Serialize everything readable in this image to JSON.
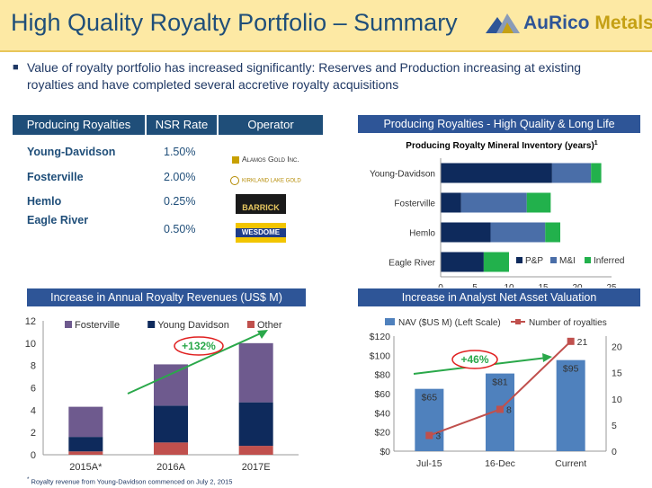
{
  "header": {
    "title": "High Quality Royalty Portfolio – Summary",
    "logo_name": "AuRico",
    "logo_suffix": "Metals"
  },
  "bullet": "Value of royalty portfolio has increased significantly: Reserves and Production increasing at existing royalties and have completed several accretive royalty acquisitions",
  "table": {
    "headers": [
      "Producing Royalties",
      "NSR Rate",
      "Operator"
    ],
    "rows": [
      {
        "name": "Young-Davidson",
        "rate": "1.50%",
        "operator": "Alamos Gold Inc."
      },
      {
        "name": "Fosterville",
        "rate": "2.00%",
        "operator": "Kirkland Lake Gold"
      },
      {
        "name": "Hemlo",
        "rate": "0.25%",
        "operator": "BARRICK"
      },
      {
        "name": "Eagle River",
        "rate": "0.50%",
        "operator": "WESDOME"
      }
    ]
  },
  "colors": {
    "navy": "#0e2a5c",
    "steel": "#4a6ea8",
    "green": "#22b14c",
    "purple": "#6e5a8e",
    "red": "#c0504d",
    "navblue": "#4f81bd",
    "arrowgreen": "#2aa84a"
  },
  "chart_data": [
    {
      "type": "bar",
      "orientation": "horizontal",
      "stacked": true,
      "panel_title": "Producing Royalties - High Quality & Long Life",
      "title": "Producing Royalty Mineral Inventory (years)",
      "title_superscript": "1",
      "categories": [
        "Young-Davidson",
        "Fosterville",
        "Hemlo",
        "Eagle River"
      ],
      "series": [
        {
          "name": "P&P",
          "values": [
            16.3,
            3.0,
            7.3,
            6.3
          ]
        },
        {
          "name": "M&I",
          "values": [
            5.7,
            9.6,
            8.0,
            0
          ]
        },
        {
          "name": "Inferred",
          "values": [
            1.5,
            3.5,
            2.2,
            3.7
          ]
        }
      ],
      "xlim": [
        0,
        25
      ],
      "xticks": [
        "0",
        "5",
        "10",
        "15",
        "20",
        "25"
      ],
      "legend": "bottom-right"
    },
    {
      "type": "bar",
      "stacked": true,
      "panel_title": "Increase in Annual Royalty Revenues (US$ M)",
      "categories": [
        "2015A*",
        "2016A",
        "2017E"
      ],
      "series": [
        {
          "name": "Other",
          "values": [
            0.3,
            1.1,
            0.8
          ]
        },
        {
          "name": "Young Davidson",
          "values": [
            1.3,
            3.3,
            3.9
          ]
        },
        {
          "name": "Fosterville",
          "values": [
            2.7,
            3.7,
            5.3
          ]
        }
      ],
      "legend_order": [
        "Fosterville",
        "Young Davidson",
        "Other"
      ],
      "ylim": [
        0,
        12
      ],
      "yticks": [
        "0",
        "2",
        "4",
        "6",
        "8",
        "10",
        "12"
      ],
      "annotation": "+132%",
      "legend": "top"
    },
    {
      "type": "bar+line",
      "panel_title": "Increase in Analyst Net Asset Valuation",
      "categories": [
        "Jul-15",
        "16-Dec",
        "Current"
      ],
      "bar_series": {
        "name": "NAV ($US M) (Left Scale)",
        "values": [
          65,
          81,
          95
        ],
        "labels": [
          "$65",
          "$81",
          "$95"
        ]
      },
      "line_series": {
        "name": "Number of royalties",
        "values": [
          3,
          8,
          21
        ],
        "labels": [
          "3",
          "8",
          "21"
        ]
      },
      "ylim_left": [
        0,
        120
      ],
      "yticks_left": [
        "$0",
        "$20",
        "$40",
        "$60",
        "$80",
        "$100",
        "$120"
      ],
      "ylim_right": [
        0,
        22
      ],
      "yticks_right": [
        "0",
        "5",
        "10",
        "15",
        "20"
      ],
      "annotation": "+46%",
      "legend": "top"
    }
  ],
  "footnote": "Royalty revenue from Young-Davidson commenced on July 2, 2015",
  "footnote_mark": "*"
}
